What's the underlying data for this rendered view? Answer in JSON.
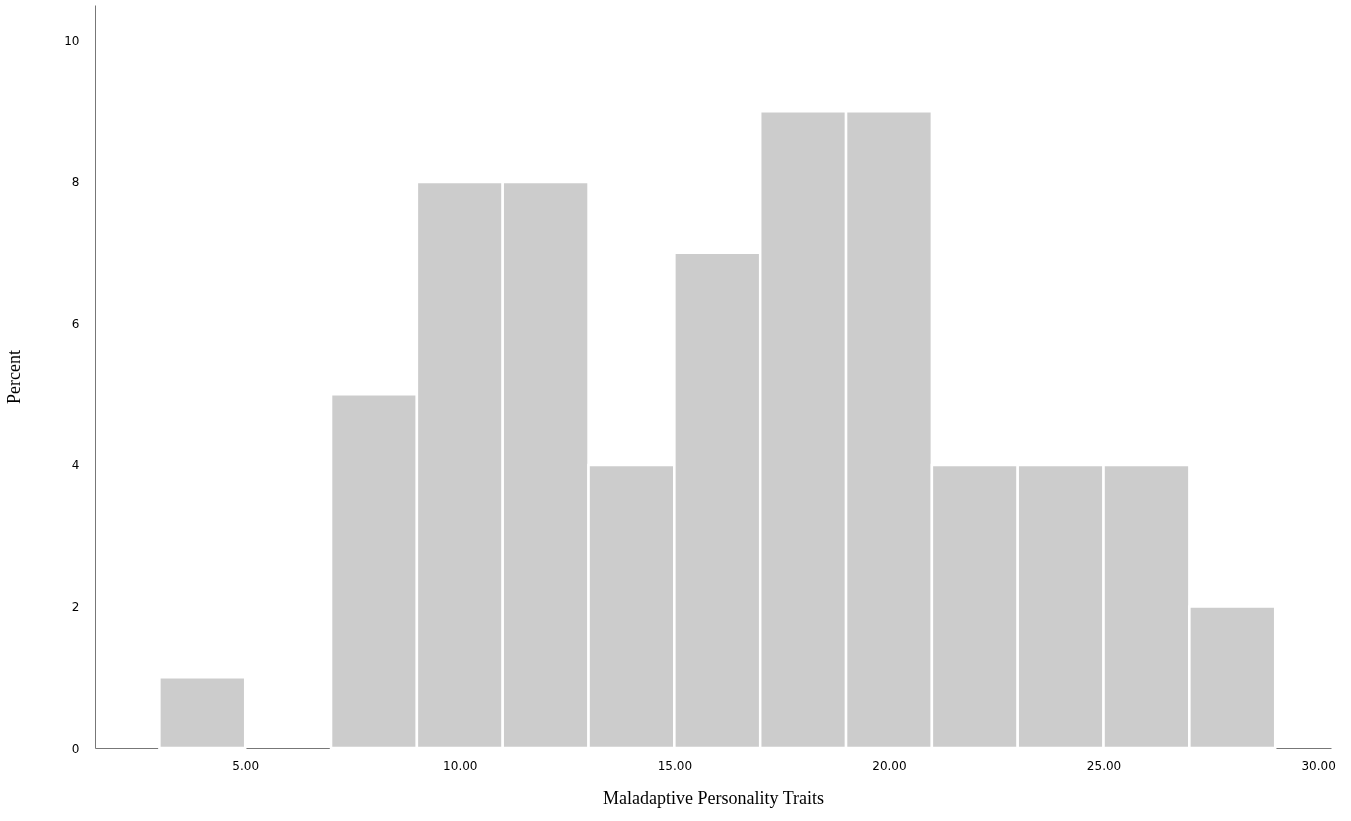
{
  "chart_data": {
    "type": "histogram",
    "xlabel": "Maladaptive Personality Traits",
    "ylabel": "Percent",
    "bins": [
      3,
      5,
      7,
      9,
      11,
      13,
      15,
      17,
      19,
      21,
      23,
      25,
      27,
      29
    ],
    "values": [
      1,
      0,
      5,
      8,
      8,
      4,
      7,
      9,
      9,
      4,
      4,
      4,
      2
    ],
    "color": "#cccccc",
    "xlim": [
      1.5,
      30.3
    ],
    "ylim": [
      0,
      10.5
    ],
    "xticks": [
      {
        "value": 5,
        "label": "5.00"
      },
      {
        "value": 10,
        "label": "10.00"
      },
      {
        "value": 15,
        "label": "15.00"
      },
      {
        "value": 20,
        "label": "20.00"
      },
      {
        "value": 25,
        "label": "25.00"
      },
      {
        "value": 30,
        "label": "30.00"
      }
    ],
    "yticks": [
      0,
      2,
      4,
      6,
      8,
      10
    ],
    "grid": false
  }
}
